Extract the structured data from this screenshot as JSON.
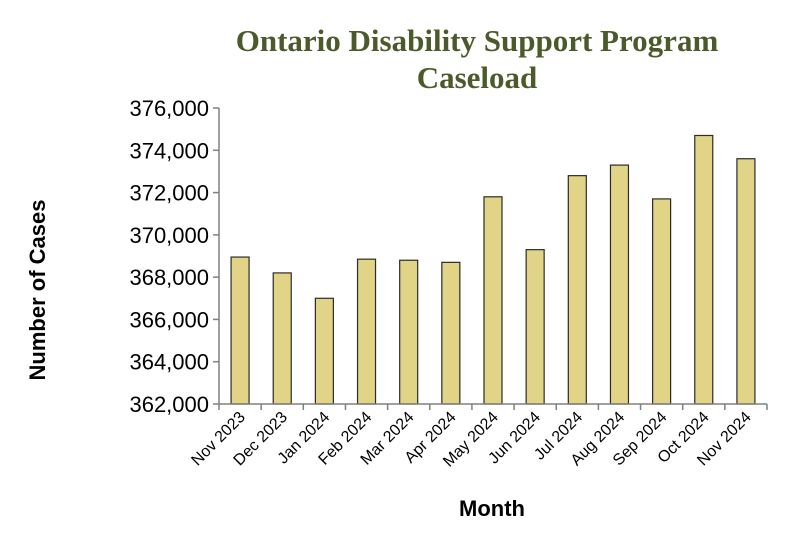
{
  "chart_data": {
    "type": "bar",
    "title_lines": [
      "Ontario Disability Support Program",
      "Caseload"
    ],
    "xlabel": "Month",
    "ylabel": "Number of Cases",
    "categories": [
      "Nov 2023",
      "Dec 2023",
      "Jan 2024",
      "Feb 2024",
      "Mar 2024",
      "Apr 2024",
      "May 2024",
      "Jun 2024",
      "Jul 2024",
      "Aug 2024",
      "Sep 2024",
      "Oct 2024",
      "Nov 2024"
    ],
    "values": [
      368950,
      368200,
      367000,
      368850,
      368800,
      368700,
      371800,
      369300,
      372800,
      373300,
      371700,
      374700,
      373600
    ],
    "ylim": [
      362000,
      376000
    ],
    "yticks": [
      362000,
      364000,
      366000,
      368000,
      370000,
      372000,
      374000,
      376000
    ],
    "ytick_labels": [
      "362,000",
      "364,000",
      "366,000",
      "368,000",
      "370,000",
      "372,000",
      "374,000",
      "376,000"
    ],
    "grid": false,
    "legend": "none",
    "colors": {
      "bar_fill": "#e2d487",
      "bar_stroke": "#2b2b2b",
      "title": "#4b5a2a",
      "axis": "#808080"
    }
  }
}
